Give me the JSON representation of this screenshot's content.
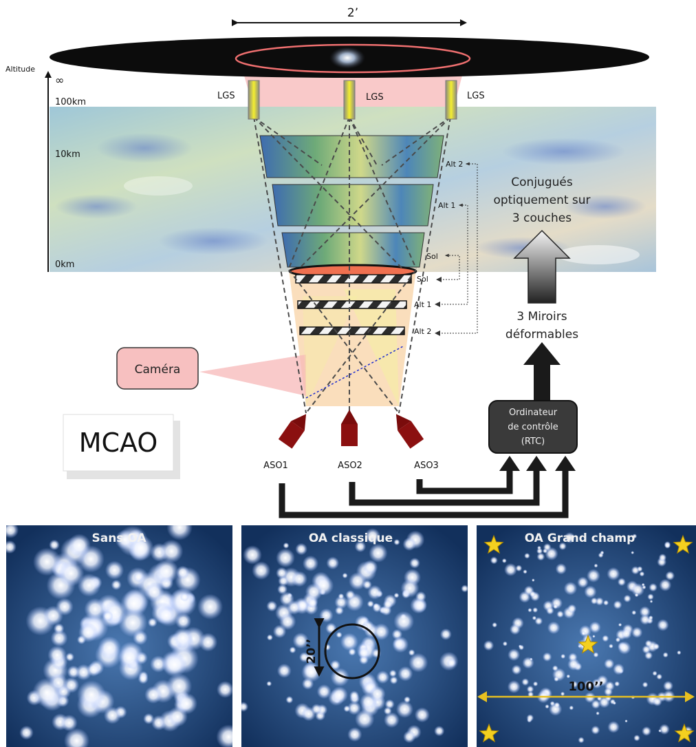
{
  "diagram": {
    "field_of_view": "2’",
    "altitude_axis": {
      "label": "Altitude",
      "ticks": [
        "∞",
        "100km",
        "10km",
        "0km"
      ]
    },
    "lgs": [
      "LGS",
      "LGS",
      "LGS"
    ],
    "layers_atmosphere": [
      "Alt 2",
      "Alt 1",
      "Sol"
    ],
    "mirrors": [
      "Sol",
      "Alt 1",
      "Alt 2"
    ],
    "conjugate_text": [
      "Conjugués",
      "optiquement sur",
      "3 couches"
    ],
    "deformable_mirrors_text": [
      "3 Miroirs",
      "déformables"
    ],
    "camera": "Caméra",
    "mcao": "MCAO",
    "rtc": [
      "Ordinateur",
      "de contrôle",
      "(RTC)"
    ],
    "wfs": [
      "ASO1",
      "ASO2",
      "ASO3"
    ],
    "colors": {
      "mirror_stripe": "#2b2b2b",
      "laser_star": "#e8e020",
      "wfs": "#8b1010",
      "camera_box": "#f7c0c0",
      "rtc_box": "#3a3a3a",
      "sky": "#163a6a"
    }
  },
  "panels": [
    {
      "title": "Sans OA"
    },
    {
      "title": "OA classique",
      "annotation": "20’’"
    },
    {
      "title": "OA Grand champ",
      "annotation": "100’’"
    }
  ]
}
